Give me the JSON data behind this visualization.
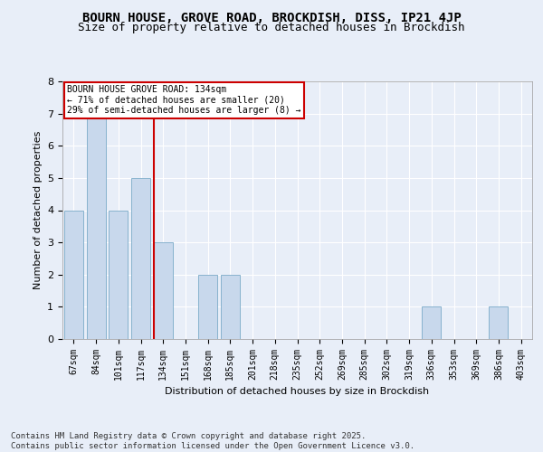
{
  "title1": "BOURN HOUSE, GROVE ROAD, BROCKDISH, DISS, IP21 4JP",
  "title2": "Size of property relative to detached houses in Brockdish",
  "xlabel": "Distribution of detached houses by size in Brockdish",
  "ylabel": "Number of detached properties",
  "categories": [
    "67sqm",
    "84sqm",
    "101sqm",
    "117sqm",
    "134sqm",
    "151sqm",
    "168sqm",
    "185sqm",
    "201sqm",
    "218sqm",
    "235sqm",
    "252sqm",
    "269sqm",
    "285sqm",
    "302sqm",
    "319sqm",
    "336sqm",
    "353sqm",
    "369sqm",
    "386sqm",
    "403sqm"
  ],
  "values": [
    4,
    7,
    4,
    5,
    3,
    0,
    2,
    2,
    0,
    0,
    0,
    0,
    0,
    0,
    0,
    0,
    1,
    0,
    0,
    1,
    0
  ],
  "bar_color": "#c8d8ec",
  "bar_edge_color": "#7aaac8",
  "highlight_index": 4,
  "highlight_line_color": "#cc0000",
  "ylim": [
    0,
    8
  ],
  "yticks": [
    0,
    1,
    2,
    3,
    4,
    5,
    6,
    7,
    8
  ],
  "annotation_text": "BOURN HOUSE GROVE ROAD: 134sqm\n← 71% of detached houses are smaller (20)\n29% of semi-detached houses are larger (8) →",
  "annotation_box_color": "#ffffff",
  "annotation_border_color": "#cc0000",
  "footer": "Contains HM Land Registry data © Crown copyright and database right 2025.\nContains public sector information licensed under the Open Government Licence v3.0.",
  "bg_color": "#e8eef8",
  "plot_bg_color": "#e8eef8",
  "grid_color": "#ffffff",
  "title_fontsize": 10,
  "subtitle_fontsize": 9,
  "tick_fontsize": 7,
  "footer_fontsize": 6.5
}
